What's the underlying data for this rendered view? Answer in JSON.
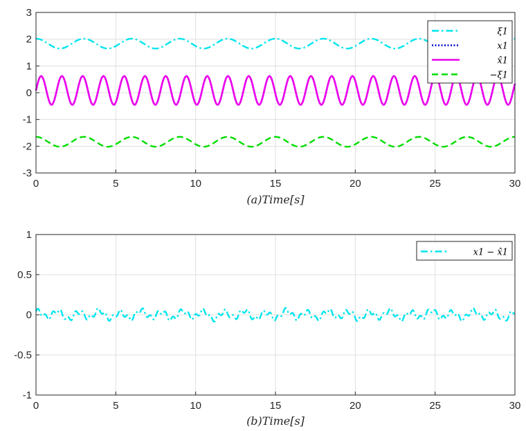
{
  "chart_data": [
    {
      "type": "line",
      "xlabel": "(a)Time[s]",
      "xlim": [
        0,
        30
      ],
      "ylim": [
        -3,
        3
      ],
      "xticks": [
        "0",
        "5",
        "10",
        "15",
        "20",
        "25",
        "30"
      ],
      "yticks": [
        "-3",
        "-2",
        "-1",
        "0",
        "1",
        "2",
        "3"
      ],
      "grid": true,
      "legend_position": "top-right",
      "series": [
        {
          "name": "ξ1",
          "color": "#00e5ee",
          "style": "dash-dot",
          "value_range": [
            1.65,
            2.02
          ],
          "period": 3.0
        },
        {
          "name": "x1",
          "color": "#0000cc",
          "style": "dotted",
          "value_range": [
            -0.45,
            0.62
          ],
          "period": 1.3
        },
        {
          "name": "x̂1",
          "color": "#ee00ee",
          "style": "solid",
          "value_range": [
            -0.45,
            0.62
          ],
          "period": 1.3
        },
        {
          "name": "−ξ1",
          "color": "#00dd00",
          "style": "dashed",
          "value_range": [
            -2.02,
            -1.65
          ],
          "period": 3.0
        }
      ]
    },
    {
      "type": "line",
      "xlabel": "(b)Time[s]",
      "xlim": [
        0,
        30
      ],
      "ylim": [
        -1,
        1
      ],
      "xticks": [
        "0",
        "5",
        "10",
        "15",
        "20",
        "25",
        "30"
      ],
      "yticks": [
        "-1",
        "-0.5",
        "0",
        "0.5",
        "1"
      ],
      "grid": true,
      "legend_position": "top-right",
      "series": [
        {
          "name": "x1 − x̂1",
          "color": "#00e5ee",
          "style": "dash-dot",
          "value_range": [
            -0.07,
            0.08
          ]
        }
      ]
    }
  ]
}
